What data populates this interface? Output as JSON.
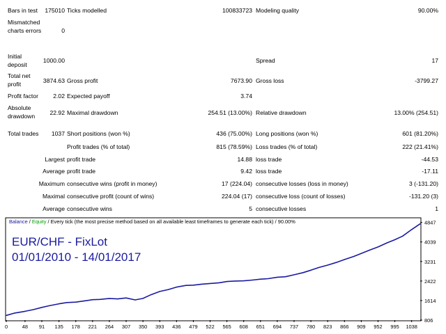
{
  "report": {
    "bars_in_test": {
      "label": "Bars in test",
      "value": "175010"
    },
    "ticks_modelled": {
      "label": "Ticks modelled",
      "value": "100833723"
    },
    "modeling_quality": {
      "label": "Modeling quality",
      "value": "90.00%"
    },
    "mismatched": {
      "label": "Mismatched charts errors",
      "value": "0"
    },
    "initial_deposit": {
      "label": "Initial deposit",
      "value": "1000.00"
    },
    "spread": {
      "label": "Spread",
      "value": "17"
    },
    "total_net_profit": {
      "label": "Total net profit",
      "value": "3874.63"
    },
    "gross_profit": {
      "label": "Gross profit",
      "value": "7673.90"
    },
    "gross_loss": {
      "label": "Gross loss",
      "value": "-3799.27"
    },
    "profit_factor": {
      "label": "Profit factor",
      "value": "2.02"
    },
    "expected_payoff": {
      "label": "Expected payoff",
      "value": "3.74"
    },
    "absolute_drawdown": {
      "label": "Absolute drawdown",
      "value": "22.92"
    },
    "maximal_drawdown": {
      "label": "Maximal drawdown",
      "value": "254.51 (13.00%)"
    },
    "relative_drawdown": {
      "label": "Relative drawdown",
      "value": "13.00% (254.51)"
    },
    "total_trades": {
      "label": "Total trades",
      "value": "1037"
    },
    "short_positions": {
      "label": "Short positions (won %)",
      "value": "436 (75.00%)"
    },
    "long_positions": {
      "label": "Long positions (won %)",
      "value": "601 (81.20%)"
    },
    "profit_trades": {
      "label": "Profit trades (% of total)",
      "value": "815 (78.59%)"
    },
    "loss_trades": {
      "label": "Loss trades (% of total)",
      "value": "222 (21.41%)"
    },
    "largest": {
      "prefix": "Largest",
      "profit_label": "profit trade",
      "profit_value": "14.88",
      "loss_label": "loss trade",
      "loss_value": "-44.53"
    },
    "average": {
      "prefix": "Average",
      "profit_label": "profit trade",
      "profit_value": "9.42",
      "loss_label": "loss trade",
      "loss_value": "-17.11"
    },
    "maximum": {
      "prefix": "Maximum",
      "wins_label": "consecutive wins (profit in money)",
      "wins_value": "17 (224.04)",
      "losses_label": "consecutive losses (loss in money)",
      "losses_value": "3 (-131.20)"
    },
    "maximal": {
      "prefix": "Maximal",
      "wins_label": "consecutive profit (count of wins)",
      "wins_value": "224.04 (17)",
      "losses_label": "consecutive loss (count of losses)",
      "losses_value": "-131.20 (3)"
    },
    "average_consec": {
      "prefix": "Average",
      "wins_label": "consecutive wins",
      "wins_value": "5",
      "losses_label": "consecutive losses",
      "losses_value": "1"
    }
  },
  "chart_data": {
    "type": "line",
    "legend": {
      "balance": "Balance",
      "sep1": " / ",
      "equity": "Equity",
      "rest": " / Every tick (the most precise method based on all available least timeframes to generate each tick) / 90.00%"
    },
    "title_line1": "EUR/CHF - FixLot",
    "title_line2": "01/01/2010 - 14/01/2017",
    "x_ticks": [
      "0",
      "48",
      "91",
      "135",
      "178",
      "221",
      "264",
      "307",
      "350",
      "393",
      "436",
      "479",
      "522",
      "565",
      "608",
      "651",
      "694",
      "737",
      "780",
      "823",
      "866",
      "909",
      "952",
      "995",
      "1038"
    ],
    "y_ticks": [
      "4847",
      "4039",
      "3231",
      "2422",
      "1614",
      "806"
    ],
    "xlim": [
      0,
      1060
    ],
    "ylim": [
      806,
      4980
    ],
    "colors": {
      "balance": "#1a1aa0",
      "equity": "#00a000",
      "title": "#1a1aa0",
      "frame": "#000000"
    },
    "series": [
      {
        "name": "Balance",
        "x": [
          0,
          20,
          48,
          70,
          91,
          110,
          135,
          155,
          178,
          200,
          221,
          240,
          264,
          285,
          307,
          330,
          350,
          370,
          393,
          415,
          436,
          460,
          479,
          500,
          522,
          545,
          565,
          585,
          608,
          630,
          651,
          670,
          694,
          715,
          737,
          760,
          780,
          800,
          823,
          845,
          866,
          890,
          909,
          930,
          952,
          975,
          995,
          1015,
          1038,
          1060
        ],
        "y": [
          1000,
          1090,
          1170,
          1240,
          1330,
          1400,
          1480,
          1530,
          1550,
          1600,
          1650,
          1660,
          1700,
          1680,
          1720,
          1640,
          1700,
          1850,
          1990,
          2070,
          2170,
          2240,
          2250,
          2290,
          2320,
          2350,
          2400,
          2420,
          2430,
          2460,
          2500,
          2520,
          2580,
          2600,
          2680,
          2770,
          2870,
          2980,
          3080,
          3190,
          3310,
          3440,
          3560,
          3700,
          3830,
          4000,
          4130,
          4280,
          4550,
          4790
        ]
      }
    ]
  }
}
